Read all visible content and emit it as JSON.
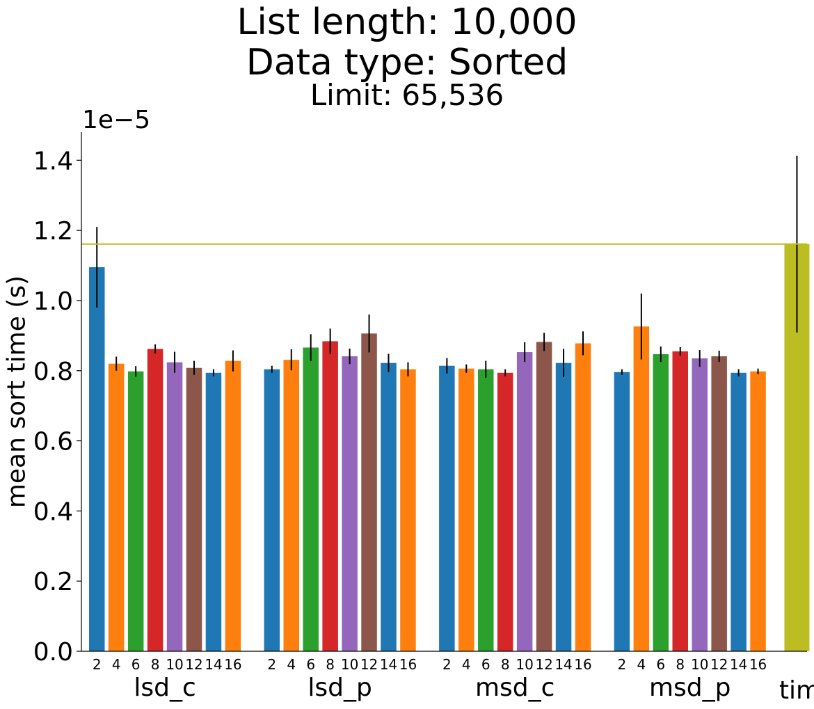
{
  "chart_data": {
    "type": "bar",
    "title_lines": [
      "List length: 10,000",
      "Data type: Sorted",
      "Limit: 65,536"
    ],
    "ylabel": "mean sort time (s)",
    "y_offset_label": "1e−5",
    "ylim": [
      0,
      1.48
    ],
    "y_scale": 1e-05,
    "yticks": [
      0.0,
      0.2,
      0.4,
      0.6,
      0.8,
      1.0,
      1.2,
      1.4
    ],
    "ytick_labels": [
      "0.0",
      "0.2",
      "0.4",
      "0.6",
      "0.8",
      "1.0",
      "1.2",
      "1.4"
    ],
    "radix_labels": [
      "2",
      "4",
      "6",
      "8",
      "10",
      "12",
      "14",
      "16"
    ],
    "radix_colors": [
      "#1f77b4",
      "#ff7f0e",
      "#2ca02c",
      "#d62728",
      "#9467bd",
      "#8c564b",
      "#1f77b4",
      "#ff7f0e"
    ],
    "groups": [
      {
        "name": "lsd_c",
        "values": [
          1.095,
          0.82,
          0.798,
          0.862,
          0.824,
          0.808,
          0.794,
          0.828
        ],
        "errors": [
          0.115,
          0.02,
          0.015,
          0.013,
          0.03,
          0.02,
          0.01,
          0.03
        ]
      },
      {
        "name": "lsd_p",
        "values": [
          0.804,
          0.831,
          0.866,
          0.884,
          0.841,
          0.906,
          0.822,
          0.804
        ],
        "errors": [
          0.01,
          0.03,
          0.038,
          0.036,
          0.022,
          0.054,
          0.026,
          0.02
        ]
      },
      {
        "name": "msd_c",
        "values": [
          0.814,
          0.806,
          0.804,
          0.794,
          0.853,
          0.882,
          0.822,
          0.878
        ],
        "errors": [
          0.022,
          0.012,
          0.024,
          0.01,
          0.028,
          0.026,
          0.04,
          0.034
        ]
      },
      {
        "name": "msd_p",
        "values": [
          0.796,
          0.926,
          0.847,
          0.855,
          0.835,
          0.841,
          0.794,
          0.798
        ],
        "errors": [
          0.008,
          0.094,
          0.022,
          0.012,
          0.024,
          0.016,
          0.01,
          0.008
        ]
      }
    ],
    "reference": {
      "name": "tim",
      "value": 1.161,
      "error": 0.252,
      "color": "#bcbd22"
    }
  }
}
